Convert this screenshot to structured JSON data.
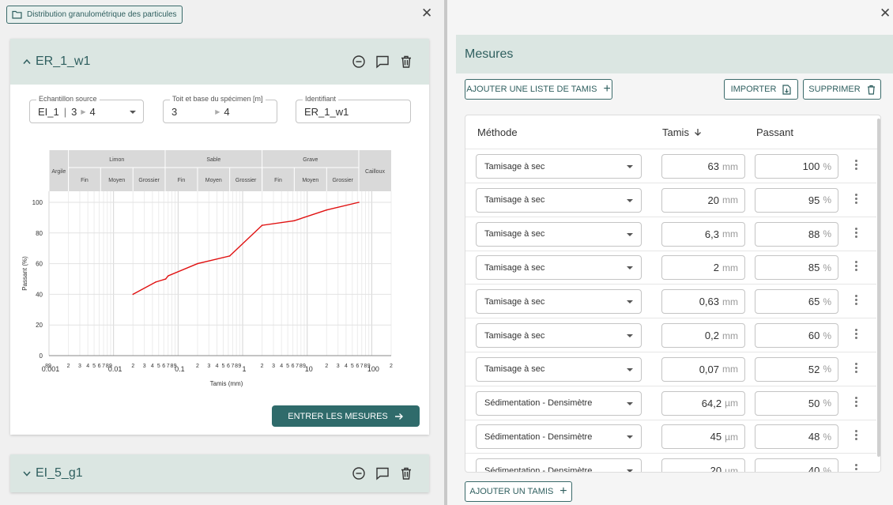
{
  "left": {
    "chip_label": "Distribution granulométrique des particules",
    "card1": {
      "title": "ER_1_w1",
      "fields": {
        "source": {
          "label": "Echantillon source",
          "value_a": "EI_1",
          "sep": "|",
          "value_b": "3",
          "value_c": "4"
        },
        "depth": {
          "label": "Toit et base du spécimen [m]",
          "top": "3",
          "base": "4"
        },
        "ident": {
          "label": "Identifiant",
          "value": "ER_1_w1"
        }
      },
      "enter_button": "ENTRER LES MESURES"
    },
    "card2": {
      "title": "EI_5_g1"
    }
  },
  "chart_data": {
    "type": "line",
    "xscale": "log",
    "xlim": [
      0.001,
      200
    ],
    "ylim": [
      0,
      100
    ],
    "xlabel": "Tamis (mm)",
    "ylabel": "Passant (%)",
    "y_ticks": [
      "0",
      "20",
      "40",
      "60",
      "80",
      "100"
    ],
    "x_major_ticks": [
      "0.001",
      "0.01",
      "0.1",
      "1",
      "10",
      "100"
    ],
    "x_minor_label_pattern": [
      "2",
      "3",
      "4",
      "5",
      "6",
      "7",
      "8",
      "9"
    ],
    "x_leading_label": "89",
    "grid": true,
    "classification": {
      "groups": [
        {
          "name": "Argile",
          "from": 0.001,
          "to": 0.002
        },
        {
          "name": "Limon",
          "from": 0.002,
          "to": 0.063
        },
        {
          "name": "Sable",
          "from": 0.063,
          "to": 2
        },
        {
          "name": "Grave",
          "from": 2,
          "to": 63
        },
        {
          "name": "Cailloux",
          "from": 63,
          "to": 200
        }
      ],
      "subgroups": [
        {
          "name": "Fin",
          "from": 0.002,
          "to": 0.0063
        },
        {
          "name": "Moyen",
          "from": 0.0063,
          "to": 0.02
        },
        {
          "name": "Grossier",
          "from": 0.02,
          "to": 0.063
        },
        {
          "name": "Fin",
          "from": 0.063,
          "to": 0.2
        },
        {
          "name": "Moyen",
          "from": 0.2,
          "to": 0.63
        },
        {
          "name": "Grossier",
          "from": 0.63,
          "to": 2
        },
        {
          "name": "Fin",
          "from": 2,
          "to": 6.3
        },
        {
          "name": "Moyen",
          "from": 6.3,
          "to": 20
        },
        {
          "name": "Grossier",
          "from": 20,
          "to": 63
        }
      ]
    },
    "series": [
      {
        "color": "#e01010",
        "x": [
          0.02,
          0.045,
          0.0642,
          0.07,
          0.2,
          0.63,
          2,
          6.3,
          20,
          63
        ],
        "y": [
          40,
          48,
          50,
          52,
          60,
          65,
          85,
          88,
          95,
          100
        ]
      }
    ]
  },
  "right": {
    "header": "Mesures",
    "add_list_button": "AJOUTER UNE LISTE DE TAMIS",
    "import_button": "IMPORTER",
    "delete_button": "SUPPRIMER",
    "add_sieve_button": "AJOUTER UN TAMIS",
    "columns": {
      "method": "Méthode",
      "sieve": "Tamis",
      "passing": "Passant"
    },
    "rows": [
      {
        "method": "Tamisage à sec",
        "sieve": "63",
        "unit": "mm",
        "passing": "100",
        "punit": "%"
      },
      {
        "method": "Tamisage à sec",
        "sieve": "20",
        "unit": "mm",
        "passing": "95",
        "punit": "%"
      },
      {
        "method": "Tamisage à sec",
        "sieve": "6,3",
        "unit": "mm",
        "passing": "88",
        "punit": "%"
      },
      {
        "method": "Tamisage à sec",
        "sieve": "2",
        "unit": "mm",
        "passing": "85",
        "punit": "%"
      },
      {
        "method": "Tamisage à sec",
        "sieve": "0,63",
        "unit": "mm",
        "passing": "65",
        "punit": "%"
      },
      {
        "method": "Tamisage à sec",
        "sieve": "0,2",
        "unit": "mm",
        "passing": "60",
        "punit": "%"
      },
      {
        "method": "Tamisage à sec",
        "sieve": "0,07",
        "unit": "mm",
        "passing": "52",
        "punit": "%"
      },
      {
        "method": "Sédimentation - Densimètre",
        "sieve": "64,2",
        "unit": "µm",
        "passing": "50",
        "punit": "%"
      },
      {
        "method": "Sédimentation - Densimètre",
        "sieve": "45",
        "unit": "µm",
        "passing": "48",
        "punit": "%"
      },
      {
        "method": "Sédimentation - Densimètre",
        "sieve": "20",
        "unit": "µm",
        "passing": "40",
        "punit": "%"
      }
    ]
  },
  "icons": {
    "folder": "folder-icon",
    "close": "close-icon",
    "remove": "minus-circle-icon",
    "comment": "comment-icon",
    "trash": "trash-icon",
    "plus": "plus-icon",
    "import": "file-import-icon",
    "sort": "arrow-down-icon",
    "more": "more-vert-icon",
    "arrow": "arrow-right-icon"
  }
}
